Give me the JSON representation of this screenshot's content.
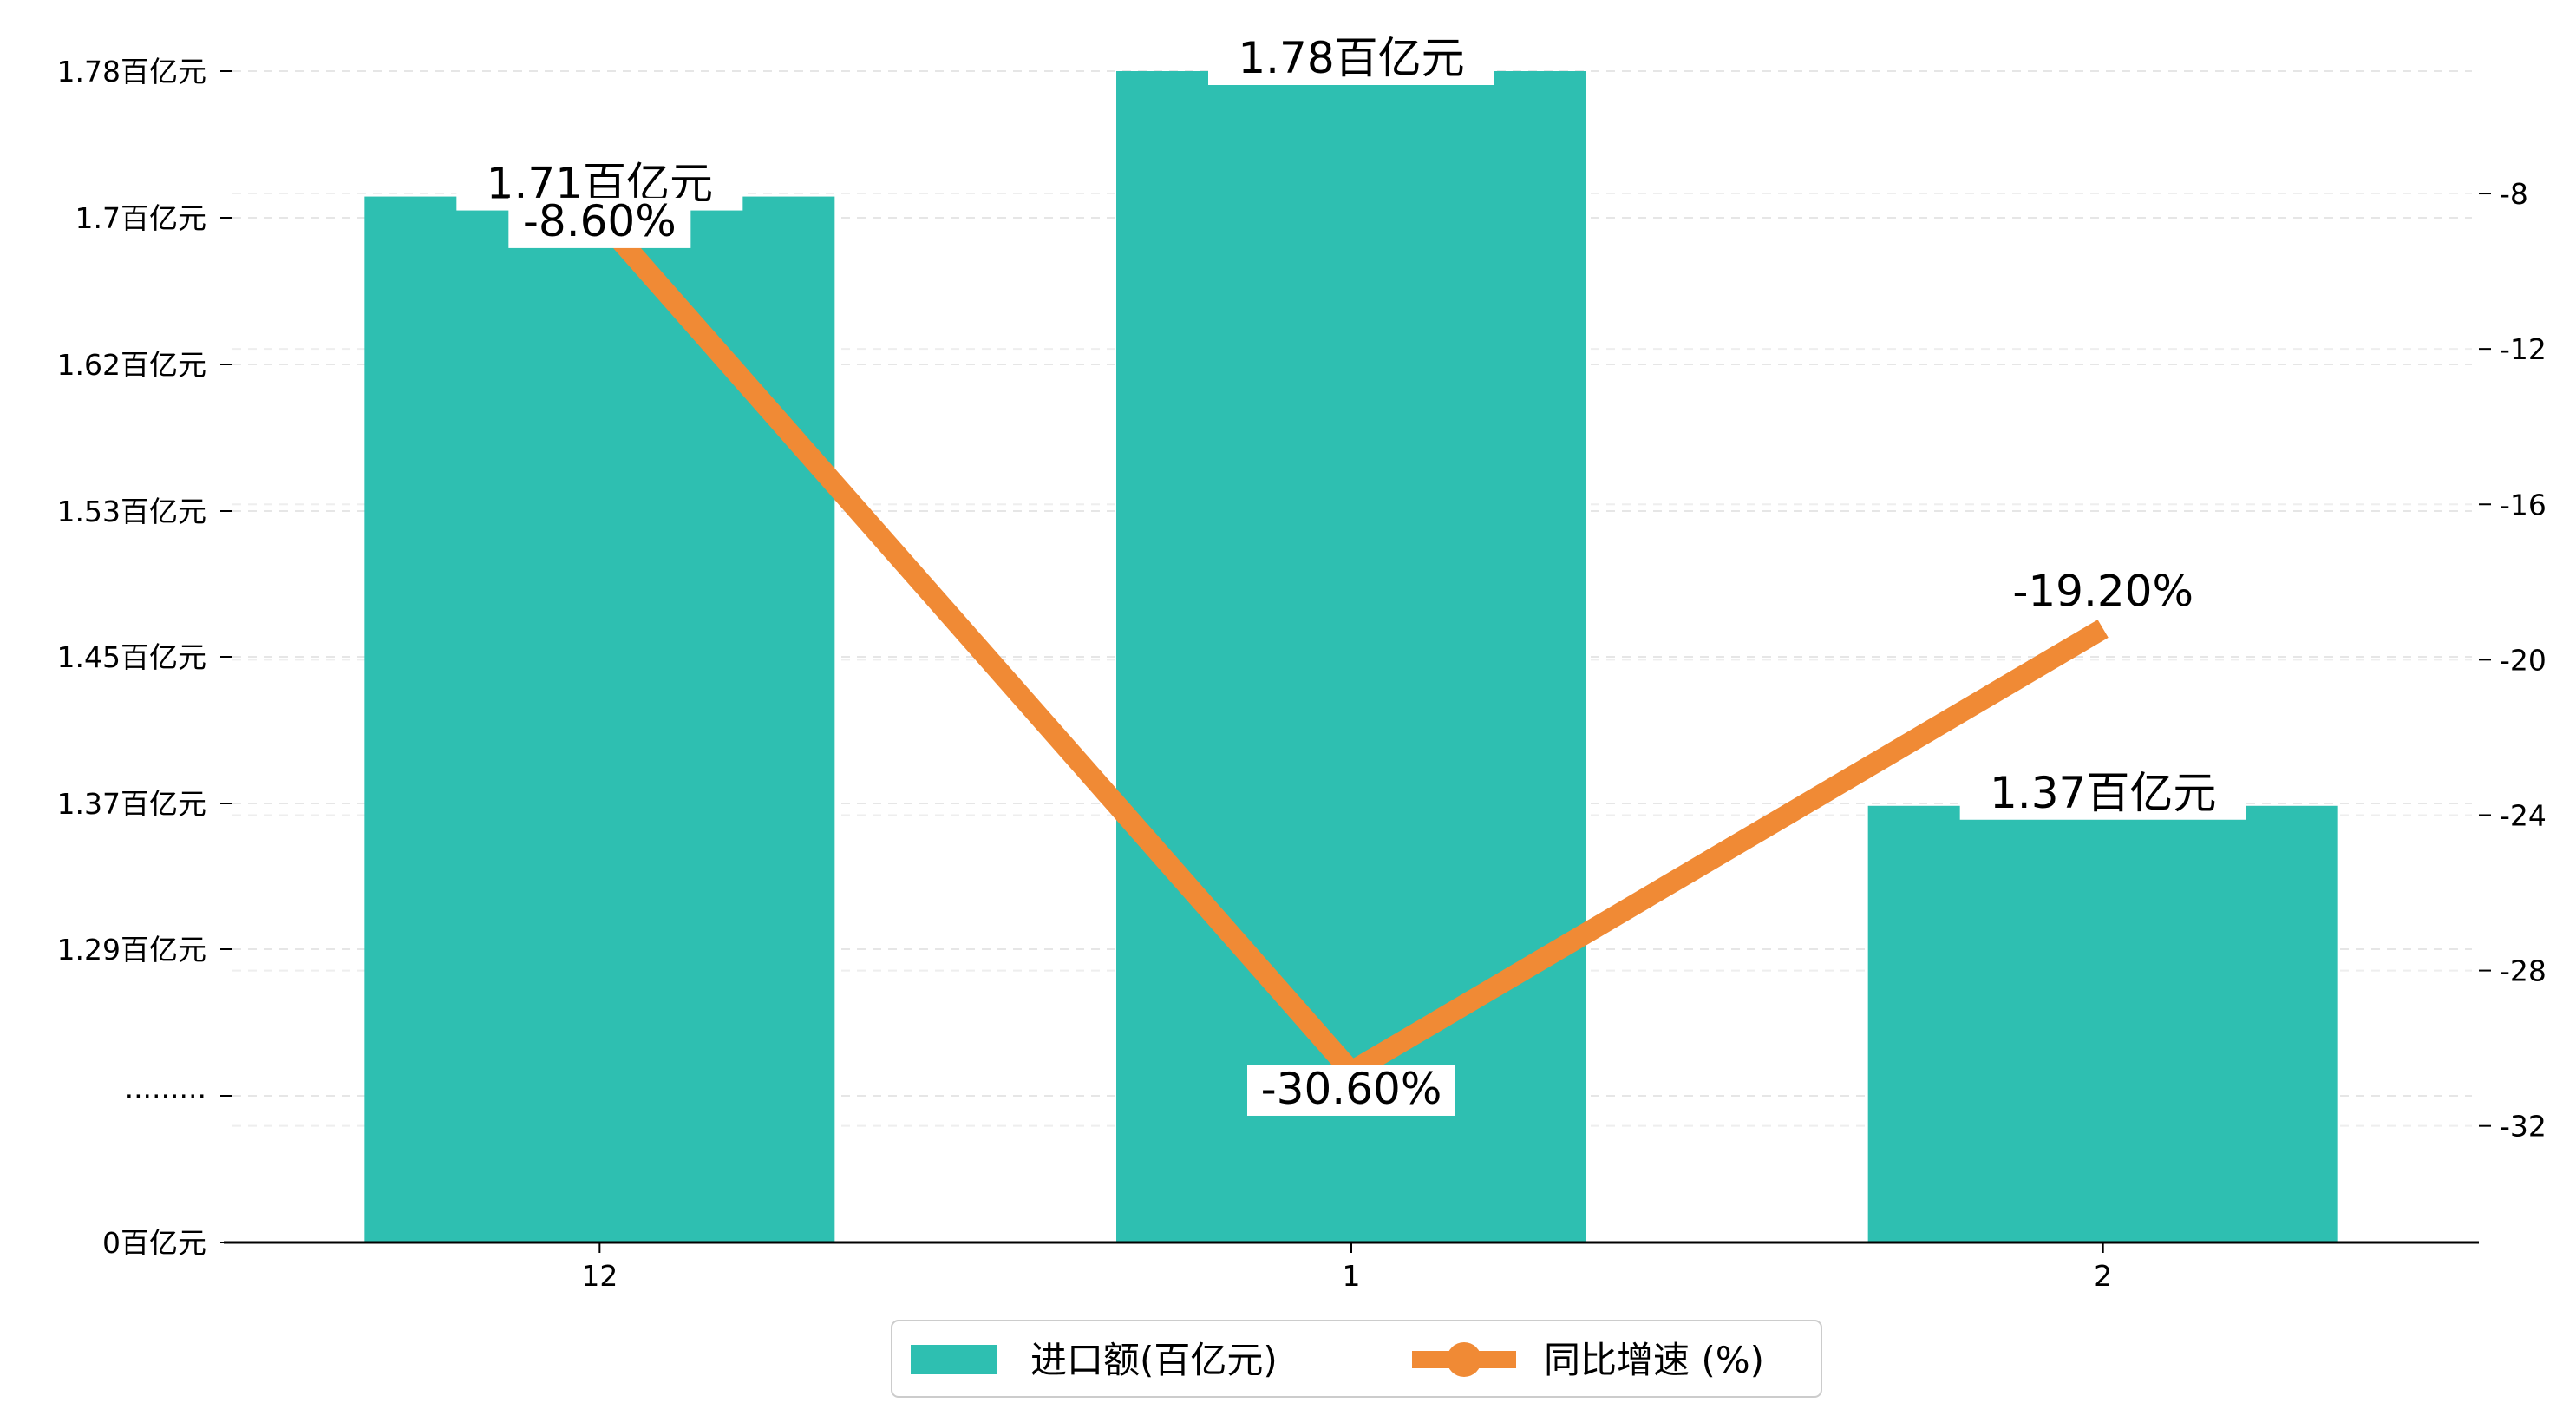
{
  "chart_data": {
    "type": "bar",
    "categories": [
      "12",
      "1",
      "2"
    ],
    "series": [
      {
        "name": "进口额(百亿元)",
        "type": "bar",
        "axis": "left",
        "values": [
          1.71,
          1.78,
          1.37
        ],
        "labels": [
          "1.71百亿元",
          "1.78百亿元",
          "1.37百亿元"
        ],
        "color": "#2ebfb1"
      },
      {
        "name": "同比增速 (%)",
        "type": "line",
        "axis": "right",
        "values": [
          -8.6,
          -30.6,
          -19.2
        ],
        "labels": [
          "-8.60%",
          "-30.60%",
          "-19.20%"
        ],
        "color": "#f08a35"
      }
    ],
    "left_axis": {
      "tick_labels": [
        "0百亿元",
        "·········",
        "1.29百亿元",
        "1.37百亿元",
        "1.45百亿元",
        "1.53百亿元",
        "1.62百亿元",
        "1.7百亿元",
        "1.78百亿元"
      ],
      "broken": true,
      "range": [
        1.205,
        1.78
      ]
    },
    "right_axis": {
      "ticks": [
        -8,
        -12,
        -16,
        -20,
        -24,
        -28,
        -32
      ],
      "tick_labels": [
        "-8",
        "-12",
        "-16",
        "-20",
        "-24",
        "-28",
        "-32"
      ],
      "range": [
        -35.0,
        -4.85
      ]
    },
    "grid": true,
    "legend_position": "bottom-center"
  }
}
